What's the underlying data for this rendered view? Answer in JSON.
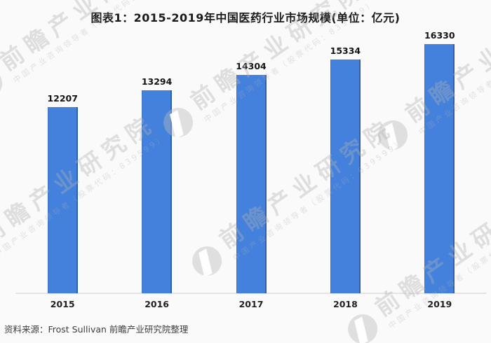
{
  "title": "图表1：2015-2019年中国医药行业市场规模(单位：亿元)",
  "source": "资料来源：Frost Sullivan 前瞻产业研究院整理",
  "watermark": {
    "text": "前瞻产业研究院",
    "subtext": "中国产业咨询领导者（股票代码：839599）"
  },
  "chart_data": {
    "type": "bar",
    "title": "图表1：2015-2019年中国医药行业市场规模(单位：亿元)",
    "categories": [
      "2015",
      "2016",
      "2017",
      "2018",
      "2019"
    ],
    "values": [
      12207,
      13294,
      14304,
      15334,
      16330
    ],
    "unit": "亿元",
    "xlabel": "",
    "ylabel": "",
    "ylim": [
      0,
      17400
    ],
    "bar_color": "#4381dd",
    "value_labels": true,
    "grid": false,
    "legend": false
  }
}
